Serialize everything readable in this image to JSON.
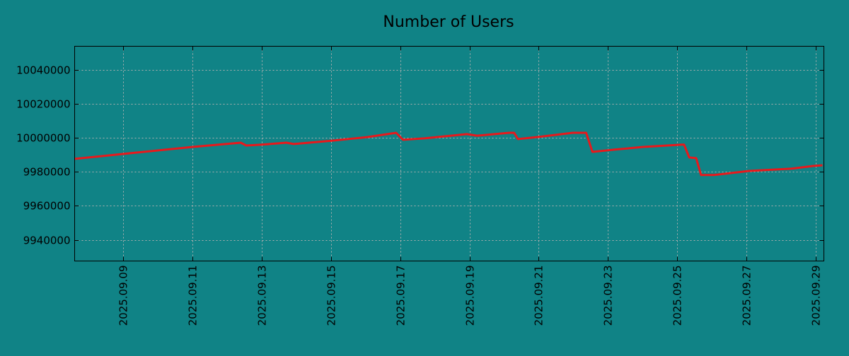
{
  "chart_data": {
    "type": "line",
    "title": "Number of Users",
    "xlabel": "",
    "ylabel": "",
    "grid": true,
    "colors": {
      "background": "#108386",
      "line": "#e8191c",
      "grid": "#b0b0b0"
    },
    "xlim": [
      7.59,
      29.24
    ],
    "ylim": [
      9927600,
      10053700
    ],
    "x_unit": "day of September 2025",
    "x_ticks": [
      {
        "value": 9,
        "label": "2025.09.09"
      },
      {
        "value": 11,
        "label": "2025.09.11"
      },
      {
        "value": 13,
        "label": "2025.09.13"
      },
      {
        "value": 15,
        "label": "2025.09.15"
      },
      {
        "value": 17,
        "label": "2025.09.17"
      },
      {
        "value": 19,
        "label": "2025.09.19"
      },
      {
        "value": 21,
        "label": "2025.09.21"
      },
      {
        "value": 23,
        "label": "2025.09.23"
      },
      {
        "value": 25,
        "label": "2025.09.25"
      },
      {
        "value": 27,
        "label": "2025.09.27"
      },
      {
        "value": 29,
        "label": "2025.09.29"
      }
    ],
    "y_ticks": [
      {
        "value": 9940000,
        "label": "9940000"
      },
      {
        "value": 9960000,
        "label": "9960000"
      },
      {
        "value": 9980000,
        "label": "9980000"
      },
      {
        "value": 10000000,
        "label": "10000000"
      },
      {
        "value": 10020000,
        "label": "10020000"
      },
      {
        "value": 10040000,
        "label": "10040000"
      }
    ],
    "series": [
      {
        "name": "Number of Users",
        "x": [
          7.59,
          9.0,
          11.0,
          12.39,
          12.55,
          13.0,
          13.71,
          13.92,
          15.04,
          16.06,
          16.88,
          17.08,
          17.69,
          18.92,
          19.22,
          20.14,
          20.29,
          20.4,
          20.96,
          21.98,
          22.37,
          22.55,
          23.2,
          24.02,
          25.14,
          25.2,
          25.35,
          25.55,
          25.69,
          26.06,
          27.08,
          28.31,
          28.92,
          29.2
        ],
        "values": [
          9987600,
          9990500,
          9994600,
          9997100,
          9995400,
          9995900,
          9997100,
          9996300,
          9998300,
          10000400,
          10002900,
          9998800,
          9999600,
          10002100,
          10001200,
          10002900,
          10002900,
          9999200,
          10000400,
          10002900,
          10002900,
          9991700,
          9993000,
          9994600,
          9995900,
          9995900,
          9988400,
          9988000,
          9978100,
          9978100,
          9980500,
          9981800,
          9983400,
          9983800
        ]
      }
    ]
  }
}
